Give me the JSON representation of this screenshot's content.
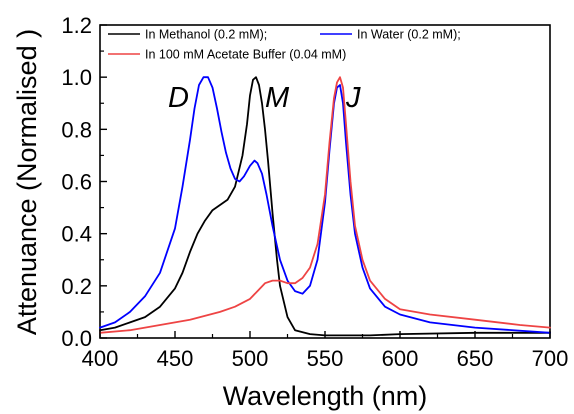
{
  "chart_data": {
    "type": "line",
    "xlabel": "Wavelength (nm)",
    "ylabel": "Attenuance (Normalised )",
    "xlim": [
      400,
      700
    ],
    "ylim": [
      0.0,
      1.2
    ],
    "xticks": [
      "400",
      "450",
      "500",
      "550",
      "600",
      "650",
      "700"
    ],
    "yticks": [
      "0.0",
      "0.2",
      "0.4",
      "0.6",
      "0.8",
      "1.0",
      "1.2"
    ],
    "grid": false,
    "legend_position": "top",
    "legend_entries": [
      "In Methanol (0.2 mM);",
      "In Water (0.2 mM);",
      "In 100 mM Acetate Buffer (0.04 mM)"
    ],
    "annotations": [
      {
        "text": "D",
        "x": 462,
        "y": 0.98
      },
      {
        "text": "M",
        "x": 513,
        "y": 0.98
      },
      {
        "text": "J",
        "x": 568,
        "y": 0.98
      }
    ],
    "series": [
      {
        "name": "In Methanol (0.2 mM);",
        "color": "#000000",
        "x": [
          400,
          410,
          420,
          430,
          440,
          450,
          455,
          460,
          465,
          470,
          475,
          480,
          485,
          490,
          495,
          498,
          500,
          502,
          504,
          506,
          508,
          510,
          512,
          515,
          518,
          520,
          525,
          530,
          540,
          550,
          560,
          580,
          600,
          650,
          700
        ],
        "y": [
          0.03,
          0.04,
          0.06,
          0.08,
          0.12,
          0.19,
          0.25,
          0.33,
          0.4,
          0.45,
          0.49,
          0.51,
          0.53,
          0.58,
          0.7,
          0.82,
          0.93,
          0.99,
          1.0,
          0.97,
          0.9,
          0.8,
          0.68,
          0.48,
          0.3,
          0.2,
          0.08,
          0.03,
          0.015,
          0.01,
          0.01,
          0.01,
          0.015,
          0.02,
          0.02
        ]
      },
      {
        "name": "In Water (0.2 mM);",
        "color": "#0000ff",
        "x": [
          400,
          410,
          420,
          430,
          440,
          450,
          455,
          460,
          463,
          466,
          469,
          472,
          475,
          478,
          481,
          484,
          487,
          490,
          493,
          496,
          500,
          503,
          505,
          508,
          511,
          515,
          520,
          525,
          530,
          535,
          540,
          545,
          550,
          553,
          556,
          558,
          560,
          562,
          564,
          567,
          570,
          575,
          580,
          590,
          600,
          620,
          650,
          700
        ],
        "y": [
          0.04,
          0.06,
          0.1,
          0.16,
          0.25,
          0.42,
          0.58,
          0.76,
          0.88,
          0.97,
          1.0,
          1.0,
          0.96,
          0.88,
          0.79,
          0.71,
          0.65,
          0.61,
          0.6,
          0.62,
          0.66,
          0.68,
          0.67,
          0.63,
          0.55,
          0.43,
          0.3,
          0.22,
          0.18,
          0.17,
          0.2,
          0.3,
          0.52,
          0.72,
          0.9,
          0.96,
          0.97,
          0.9,
          0.75,
          0.55,
          0.4,
          0.27,
          0.19,
          0.12,
          0.09,
          0.06,
          0.04,
          0.02
        ]
      },
      {
        "name": "In 100 mM Acetate Buffer (0.04 mM)",
        "color": "#ee4444",
        "x": [
          400,
          420,
          440,
          460,
          480,
          490,
          500,
          505,
          510,
          515,
          520,
          525,
          530,
          535,
          540,
          545,
          550,
          553,
          556,
          558,
          560,
          562,
          564,
          567,
          570,
          575,
          580,
          590,
          600,
          620,
          650,
          680,
          700
        ],
        "y": [
          0.02,
          0.03,
          0.05,
          0.07,
          0.1,
          0.12,
          0.15,
          0.18,
          0.21,
          0.22,
          0.22,
          0.21,
          0.21,
          0.23,
          0.27,
          0.36,
          0.55,
          0.75,
          0.92,
          0.98,
          1.0,
          0.96,
          0.82,
          0.6,
          0.43,
          0.3,
          0.22,
          0.15,
          0.11,
          0.09,
          0.07,
          0.05,
          0.04
        ]
      }
    ]
  }
}
